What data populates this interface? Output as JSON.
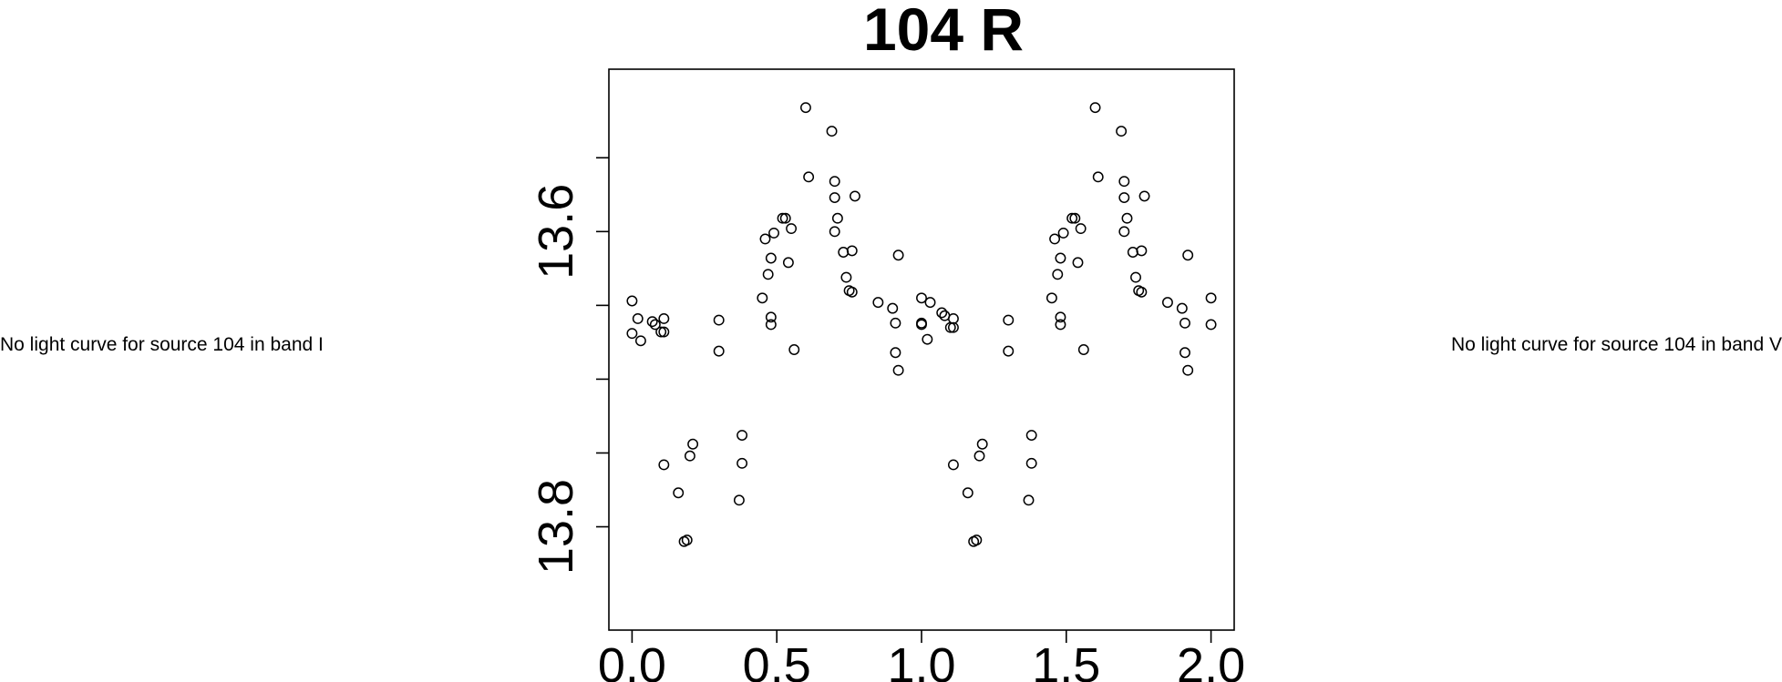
{
  "side_notes": {
    "left": "No light curve for source 104 in band I",
    "right": "No light curve for source 104 in band V"
  },
  "chart_data": {
    "type": "scatter",
    "title": "104 R",
    "xlabel": "",
    "ylabel": "",
    "xlim": [
      -0.08,
      2.08
    ],
    "ylim": [
      13.87,
      13.49
    ],
    "y_inverted": true,
    "x_ticks": [
      0.0,
      0.5,
      1.0,
      1.5,
      2.0
    ],
    "x_tick_labels": [
      "0.0",
      "0.5",
      "1.0",
      "1.5",
      "2.0"
    ],
    "y_ticks": [
      13.55,
      13.6,
      13.65,
      13.7,
      13.75,
      13.8
    ],
    "y_tick_labels": [
      "",
      "13.6",
      "",
      "",
      "",
      "13.8"
    ],
    "grid": false,
    "marker": "open-circle",
    "color": "#000000",
    "x": [
      0.0,
      0.0,
      0.02,
      0.03,
      0.07,
      0.08,
      0.1,
      0.11,
      0.11,
      0.11,
      0.16,
      0.18,
      0.19,
      0.2,
      0.21,
      0.3,
      0.3,
      0.37,
      0.38,
      0.38,
      0.45,
      0.46,
      0.47,
      0.48,
      0.48,
      0.48,
      0.49,
      0.52,
      0.53,
      0.54,
      0.55,
      0.56,
      0.6,
      0.61,
      0.69,
      0.7,
      0.7,
      0.7,
      0.71,
      0.73,
      0.74,
      0.75,
      0.76,
      0.76,
      0.77,
      0.85,
      0.9,
      0.91,
      0.91,
      0.92,
      0.92,
      1.0,
      1.0,
      1.0,
      1.02,
      1.03,
      1.07,
      1.08,
      1.1,
      1.11,
      1.11,
      1.11,
      1.16,
      1.18,
      1.19,
      1.2,
      1.21,
      1.3,
      1.3,
      1.37,
      1.38,
      1.38,
      1.45,
      1.46,
      1.47,
      1.48,
      1.48,
      1.48,
      1.49,
      1.52,
      1.53,
      1.54,
      1.55,
      1.56,
      1.6,
      1.61,
      1.69,
      1.7,
      1.7,
      1.7,
      1.71,
      1.73,
      1.74,
      1.75,
      1.76,
      1.76,
      1.77,
      1.85,
      1.9,
      1.91,
      1.91,
      1.92,
      1.92,
      2.0,
      2.0
    ],
    "y": [
      13.647,
      13.669,
      13.659,
      13.674,
      13.661,
      13.663,
      13.668,
      13.668,
      13.659,
      13.758,
      13.777,
      13.81,
      13.809,
      13.752,
      13.744,
      13.681,
      13.66,
      13.782,
      13.738,
      13.757,
      13.645,
      13.605,
      13.629,
      13.663,
      13.618,
      13.658,
      13.601,
      13.591,
      13.591,
      13.621,
      13.598,
      13.68,
      13.516,
      13.563,
      13.532,
      13.566,
      13.577,
      13.6,
      13.591,
      13.614,
      13.631,
      13.64,
      13.641,
      13.613,
      13.576,
      13.648,
      13.652,
      13.662,
      13.682,
      13.694,
      13.616,
      13.645,
      13.663,
      13.662,
      13.673,
      13.648,
      13.655,
      13.657,
      13.665,
      13.665,
      13.659,
      13.758,
      13.777,
      13.81,
      13.809,
      13.752,
      13.744,
      13.681,
      13.66,
      13.782,
      13.738,
      13.757,
      13.645,
      13.605,
      13.629,
      13.663,
      13.618,
      13.658,
      13.601,
      13.591,
      13.591,
      13.621,
      13.598,
      13.68,
      13.516,
      13.563,
      13.532,
      13.566,
      13.577,
      13.6,
      13.591,
      13.614,
      13.631,
      13.64,
      13.641,
      13.613,
      13.576,
      13.648,
      13.652,
      13.662,
      13.682,
      13.694,
      13.616,
      13.645,
      13.663
    ]
  }
}
